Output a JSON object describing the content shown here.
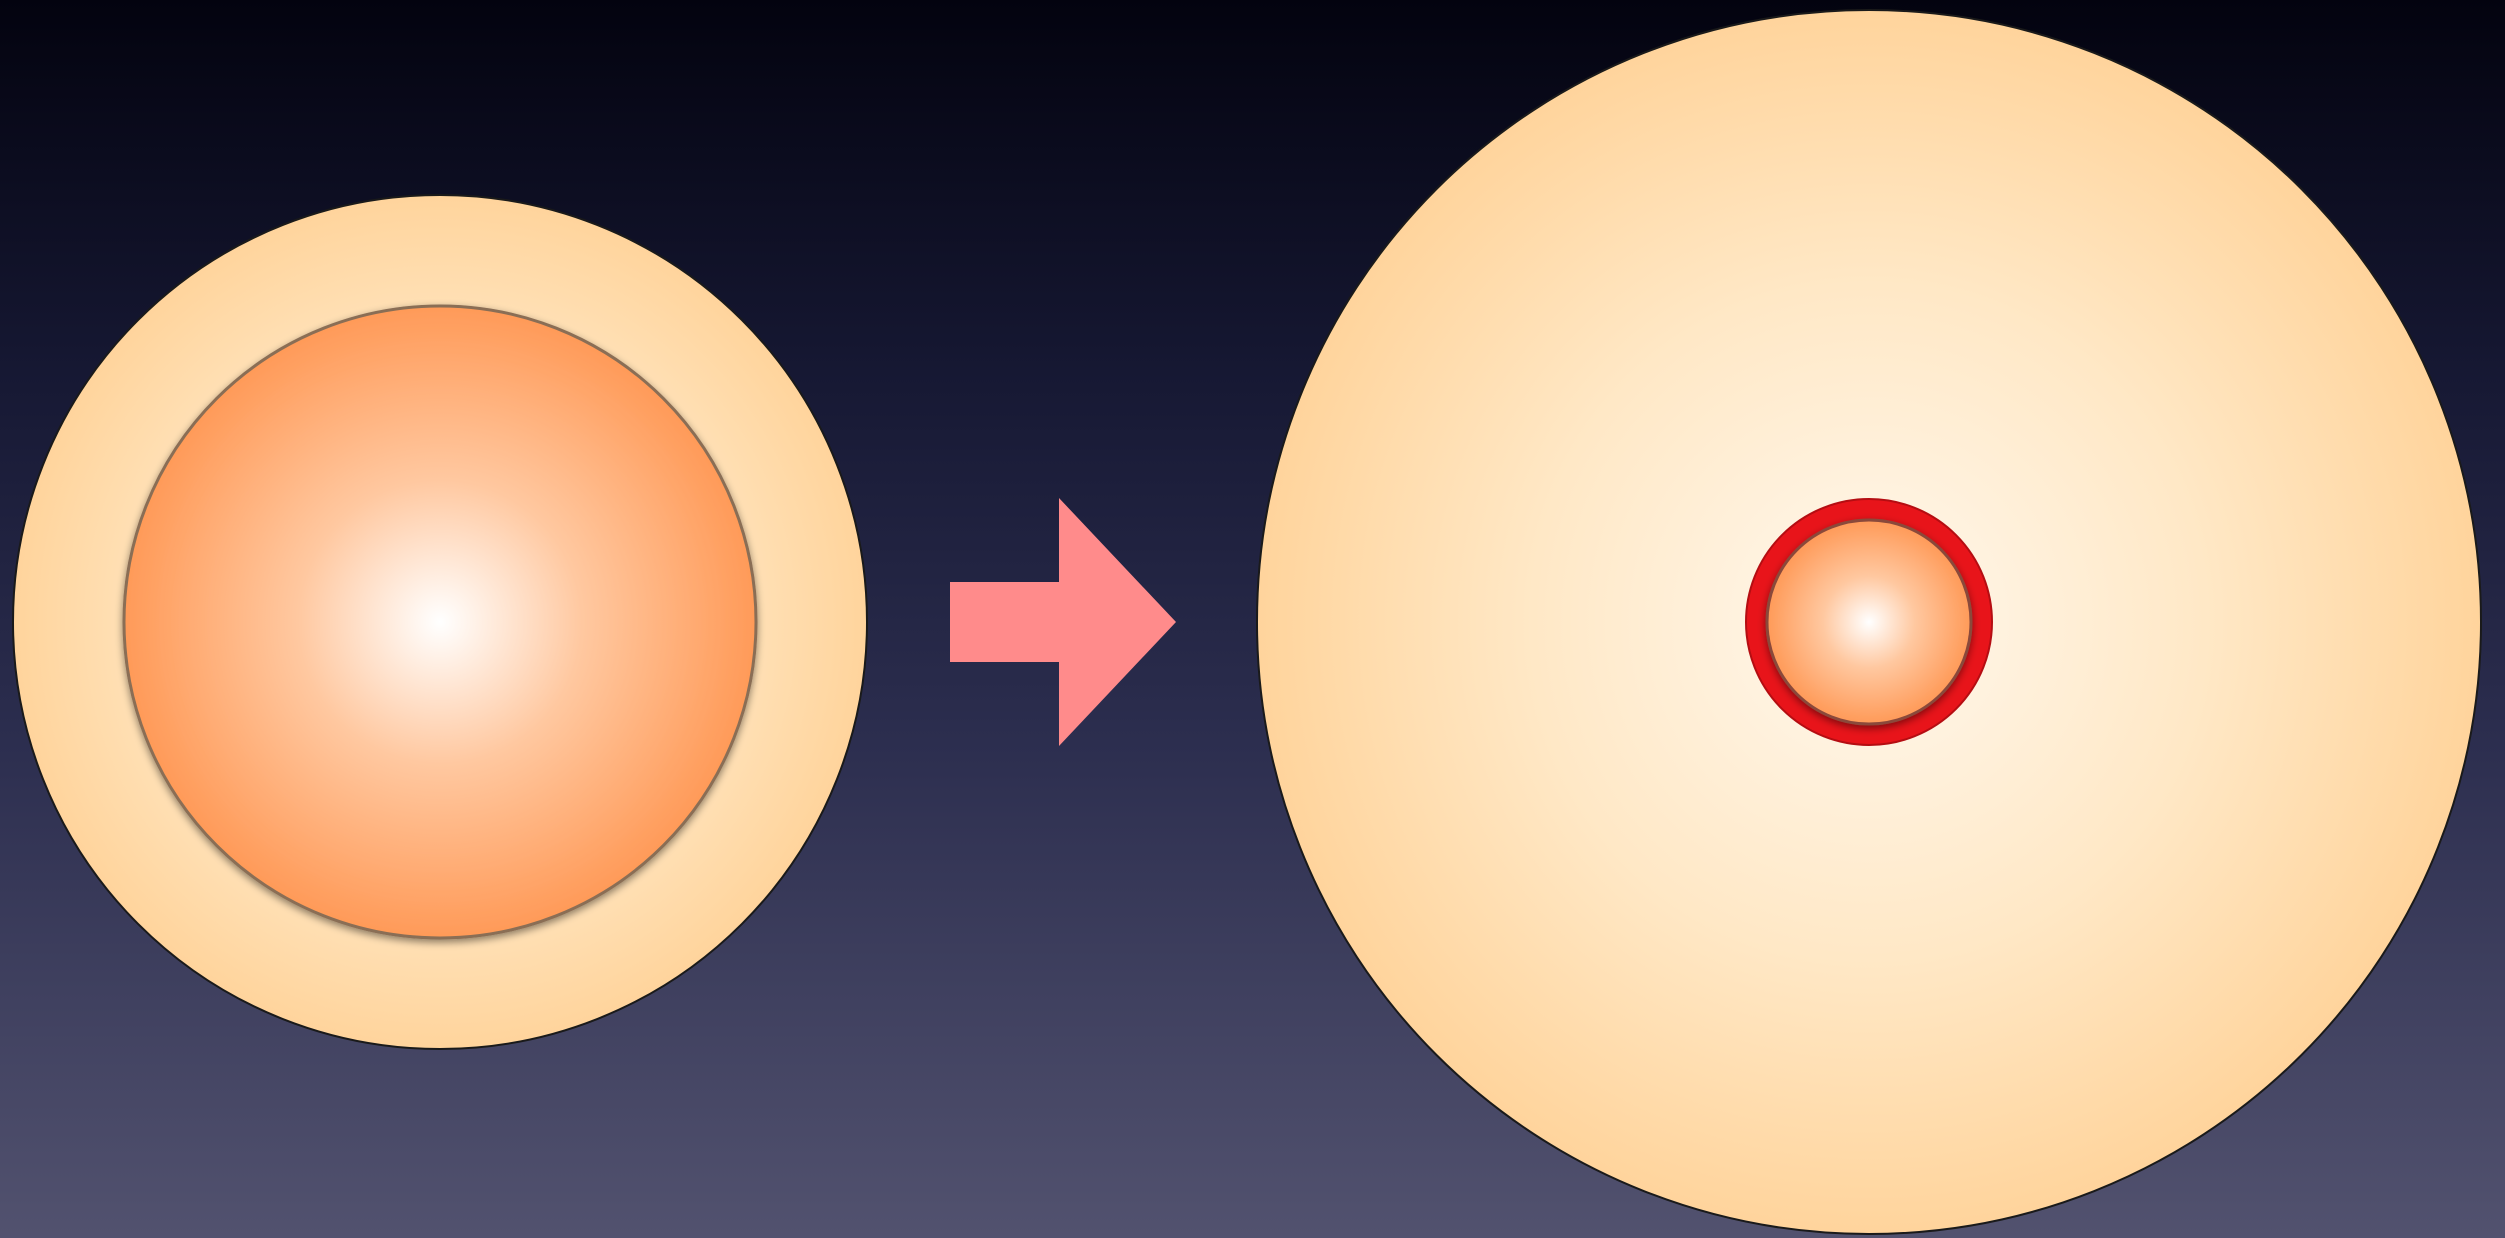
{
  "diagram": {
    "colors": {
      "background_top": "#03030f",
      "background_bottom": "#52526f",
      "envelope_center": "#fff8ee",
      "envelope_edge": "#ffd49c",
      "core_center": "#ffffff",
      "core_edge": "#ff9a58",
      "core_ring": "#e8141a",
      "arrow": "#ff8b8b"
    },
    "before": {
      "envelope": "star-envelope",
      "core": "star-core"
    },
    "transition": {
      "icon": "right-arrow-icon"
    },
    "after": {
      "envelope": "expanded-envelope",
      "core": "contracted-core",
      "highlight": "red-ring"
    }
  }
}
